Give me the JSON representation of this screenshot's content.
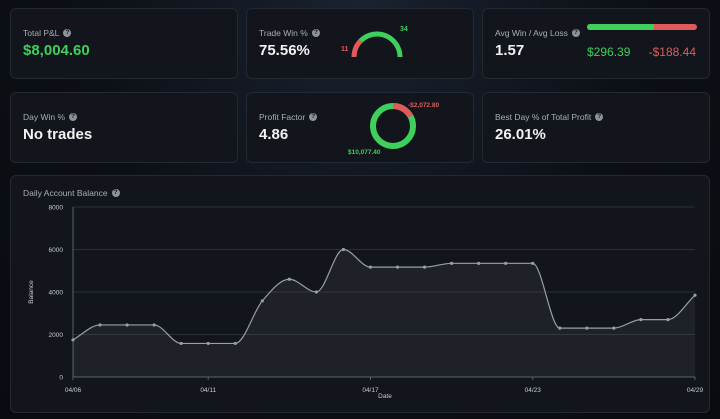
{
  "cards": {
    "total_pnl": {
      "label": "Total P&L",
      "value": "$8,004.60"
    },
    "trade_win": {
      "label": "Trade Win %",
      "value": "75.56%",
      "wins": "34",
      "losses": "11"
    },
    "avg_win_loss": {
      "label": "Avg Win / Avg Loss",
      "value": "1.57",
      "avg_win": "$296.39",
      "avg_loss": "-$188.44",
      "win_share": 0.61
    },
    "day_win": {
      "label": "Day Win %",
      "value": "No trades"
    },
    "profit_factor": {
      "label": "Profit Factor",
      "value": "4.86",
      "gross_profit": "$10,077.40",
      "gross_loss": "-$2,072.80"
    },
    "best_day": {
      "label": "Best Day % of Total Profit",
      "value": "26.01%"
    }
  },
  "info_icon": {
    "glyph": "?"
  },
  "colors": {
    "green": "#3ecf5c",
    "red": "#e05a5a",
    "background": "#0c0f15",
    "card": "#12151c"
  },
  "chart_title": "Daily Account Balance",
  "chart_data": {
    "type": "area",
    "title": "Daily Account Balance",
    "xlabel": "Date",
    "ylabel": "Balance",
    "x_ticks": [
      {
        "label": "04/06",
        "day": 0
      },
      {
        "label": "04/11",
        "day": 5
      },
      {
        "label": "04/17",
        "day": 11
      },
      {
        "label": "04/23",
        "day": 17
      },
      {
        "label": "04/29",
        "day": 23
      }
    ],
    "y_ticks": [
      0,
      2000,
      4000,
      6000,
      8000
    ],
    "ylim": [
      0,
      8000
    ],
    "xlim": [
      0,
      23
    ],
    "grid": true,
    "series": [
      {
        "x": [
          0,
          1,
          2,
          3,
          4,
          5,
          6,
          7,
          8,
          9,
          10,
          11,
          12,
          13,
          14,
          15,
          16,
          17,
          18,
          19,
          20,
          21,
          22,
          23
        ],
        "values": [
          1750,
          2450,
          2450,
          2450,
          1580,
          1580,
          1580,
          3580,
          4600,
          4000,
          6000,
          5170,
          5170,
          5170,
          5350,
          5350,
          5350,
          5350,
          2300,
          2300,
          2300,
          2700,
          2700,
          3850
        ]
      }
    ]
  }
}
